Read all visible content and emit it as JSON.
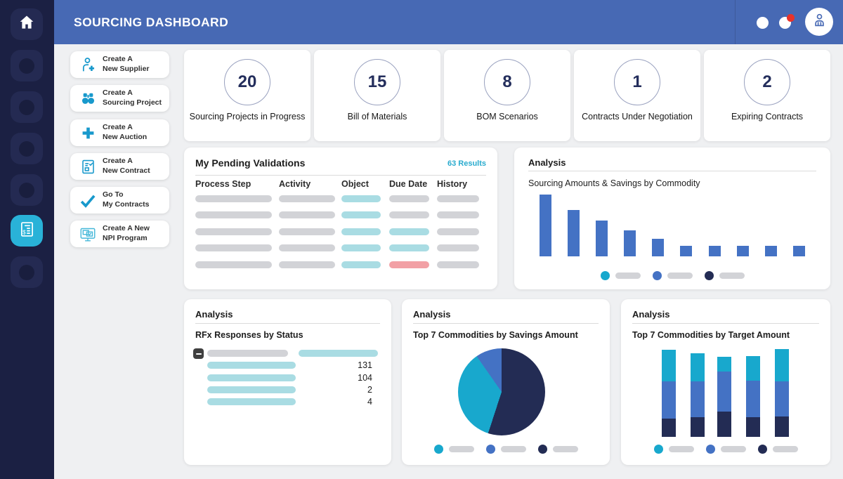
{
  "app": {
    "title": "SOURCING DASHBOARD"
  },
  "colors": {
    "header": "#4769b4",
    "sidebar": "#1b2043",
    "active_item": "#29b2d8",
    "cyan": "#18a8cd",
    "blue": "#4472c4",
    "navy": "#232c54",
    "pill_gray": "#d2d3d7",
    "pill_teal": "#a9dce3",
    "pill_pink": "#f2a0a5",
    "results_link": "#29abce",
    "badge_red": "#e8332a"
  },
  "sidebar": {
    "items": [
      {
        "type": "home",
        "icon": "home-icon"
      },
      {
        "type": "placeholder",
        "icon": "circle-placeholder-icon"
      },
      {
        "type": "placeholder",
        "icon": "circle-placeholder-icon"
      },
      {
        "type": "placeholder",
        "icon": "circle-placeholder-icon"
      },
      {
        "type": "placeholder",
        "icon": "circle-placeholder-icon"
      },
      {
        "type": "active",
        "icon": "invoice-icon"
      },
      {
        "type": "placeholder",
        "icon": "circle-placeholder-icon"
      }
    ]
  },
  "header": {
    "icons": [
      {
        "name": "status-dot-icon",
        "badge": false
      },
      {
        "name": "notification-dot-icon",
        "badge": true
      },
      {
        "name": "user-avatar-icon",
        "badge": false
      }
    ]
  },
  "actions": {
    "items": [
      {
        "icon": "supplier-add-icon",
        "line1": "Create A",
        "line2": "New Supplier"
      },
      {
        "icon": "binoculars-icon",
        "line1": "Create A",
        "line2": "Sourcing Project"
      },
      {
        "icon": "plus-icon",
        "line1": "Create A",
        "line2": "New Auction"
      },
      {
        "icon": "contract-doc-icon",
        "line1": "Create A",
        "line2": "New Contract"
      },
      {
        "icon": "checkmark-icon",
        "line1": "Go To",
        "line2": "My Contracts"
      },
      {
        "icon": "monitor-check-icon",
        "line1": "Create A New",
        "line2": "NPI Program"
      }
    ]
  },
  "kpis": [
    {
      "value": "20",
      "label": "Sourcing Projects in Progress"
    },
    {
      "value": "15",
      "label": "Bill of Materials"
    },
    {
      "value": "8",
      "label": "BOM Scenarios"
    },
    {
      "value": "1",
      "label": "Contracts Under Negotiation"
    },
    {
      "value": "2",
      "label": "Expiring Contracts"
    }
  ],
  "validations": {
    "title": "My Pending Validations",
    "results_label": "63 Results",
    "columns": [
      "Process Step",
      "Activity",
      "Object",
      "Due Date",
      "History"
    ],
    "rows": [
      [
        "gray",
        "gray",
        "teal",
        "gray",
        "gray"
      ],
      [
        "gray",
        "gray",
        "teal",
        "gray",
        "gray"
      ],
      [
        "gray",
        "gray",
        "teal",
        "teal",
        "gray"
      ],
      [
        "gray",
        "gray",
        "teal",
        "teal",
        "gray"
      ],
      [
        "gray",
        "gray",
        "teal",
        "pink",
        "gray"
      ]
    ]
  },
  "analysis_bar": {
    "section_title": "Analysis",
    "subtitle": "Sourcing Amounts & Savings by Commodity",
    "values": [
      100,
      75,
      58,
      42,
      28,
      17,
      17,
      17,
      17,
      17
    ],
    "legend": [
      "cyan",
      "blue",
      "navy"
    ]
  },
  "rfx": {
    "section_title": "Analysis",
    "subtitle": "RFx Responses by Status",
    "parent_row": {
      "label_style": "gray",
      "value_style": "teal"
    },
    "child_values": [
      "131",
      "104",
      "2",
      "4"
    ]
  },
  "pie": {
    "section_title": "Analysis",
    "subtitle": "Top 7 Commodities by Savings Amount",
    "slices": [
      {
        "color": "navy",
        "pct": 55
      },
      {
        "color": "cyan",
        "pct": 35.3
      },
      {
        "color": "blue",
        "pct": 9.7
      }
    ],
    "legend": [
      "cyan",
      "blue",
      "navy"
    ]
  },
  "stacked": {
    "section_title": "Analysis",
    "subtitle": "Top 7 Commodities by Target Amount",
    "segment_order": [
      "navy",
      "blue",
      "cyan"
    ],
    "bars": [
      [
        26,
        53,
        45
      ],
      [
        28,
        51,
        40
      ],
      [
        36,
        57,
        21
      ],
      [
        28,
        52,
        35
      ],
      [
        29,
        50,
        46
      ]
    ],
    "legend": [
      "cyan",
      "blue",
      "navy"
    ]
  },
  "chart_data": [
    {
      "type": "bar",
      "title": "Sourcing Amounts & Savings by Commodity",
      "categories": [
        "",
        "",
        "",
        "",
        "",
        "",
        "",
        "",
        "",
        ""
      ],
      "values": [
        100,
        75,
        58,
        42,
        28,
        17,
        17,
        17,
        17,
        17
      ],
      "xlabel": "",
      "ylabel": "",
      "legend_position": "bottom",
      "note": "category and legend labels are redacted placeholder pills"
    },
    {
      "type": "table",
      "title": "RFx Responses by Status",
      "values": [
        131,
        104,
        2,
        4
      ],
      "note": "row labels are redacted placeholder pills"
    },
    {
      "type": "pie",
      "title": "Top 7 Commodities by Savings Amount",
      "values": [
        55,
        35.3,
        9.7
      ],
      "colors": [
        "#232c54",
        "#18a8cd",
        "#4472c4"
      ],
      "legend_position": "bottom"
    },
    {
      "type": "bar",
      "title": "Top 7 Commodities by Target Amount",
      "stacked": true,
      "categories": [
        "",
        "",
        "",
        "",
        ""
      ],
      "series": [
        {
          "name": "navy",
          "values": [
            26,
            28,
            36,
            28,
            29
          ]
        },
        {
          "name": "blue",
          "values": [
            53,
            51,
            57,
            52,
            50
          ]
        },
        {
          "name": "cyan",
          "values": [
            45,
            40,
            21,
            35,
            46
          ]
        }
      ],
      "legend_position": "bottom"
    }
  ]
}
